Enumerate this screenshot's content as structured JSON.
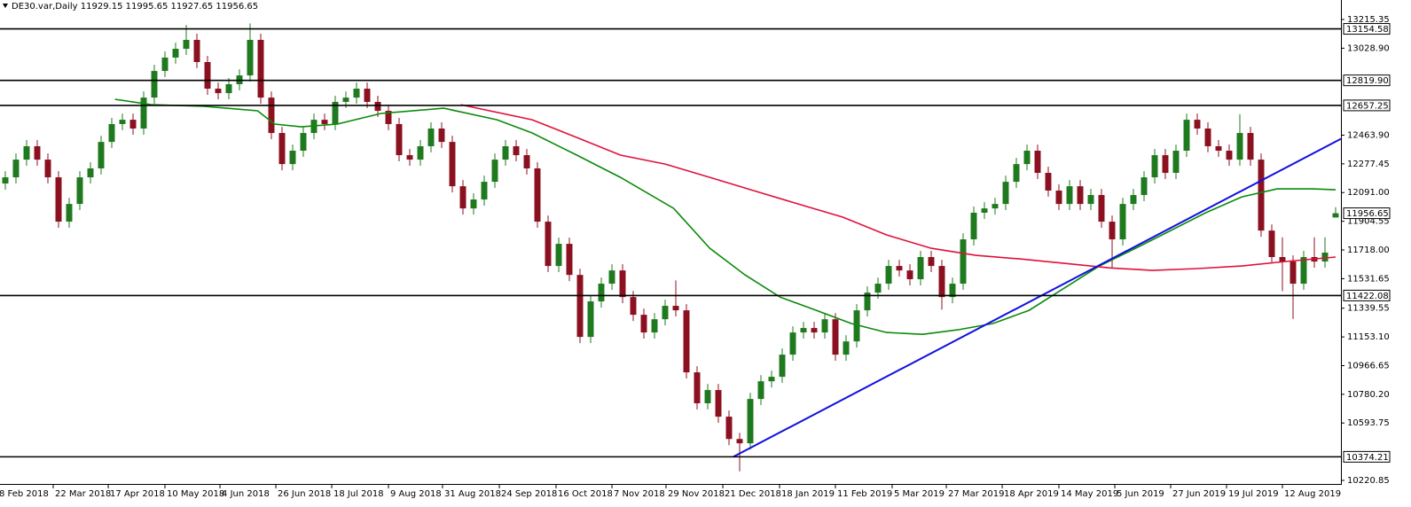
{
  "chart_data": {
    "type": "candlestick",
    "title": "DE30.var,Daily  11929.15 11995.65 11927.65 11956.65",
    "up_color": "#1f7a1f",
    "down_color": "#8b1020",
    "open": [
      12150,
      12190,
      12305,
      12392,
      12305,
      12190,
      11902,
      12017,
      12190,
      12248,
      12420,
      12536,
      12564,
      12507,
      12708,
      12881,
      12968,
      13025,
      13083,
      12939,
      12766,
      12737,
      12795,
      12852,
      13083,
      12708,
      12478,
      12276,
      12363,
      12478,
      12564,
      12536,
      12680,
      12708,
      12766,
      12680,
      12622,
      12536,
      12334,
      12305,
      12392,
      12507,
      12420,
      12132,
      11988,
      12046,
      12161,
      12305,
      12392,
      12334,
      12248,
      11902,
      11614,
      11758,
      11556,
      11153,
      11384,
      11499,
      11585,
      11412,
      11297,
      11182,
      11268,
      11355,
      11326,
      10923,
      10722,
      10808,
      10635,
      10490,
      10462,
      10750,
      10865,
      10894,
      11038,
      11182,
      11211,
      11182,
      11268,
      11038,
      11124,
      11326,
      11441,
      11499,
      11614,
      11585,
      11528,
      11672,
      11614,
      11412,
      11499,
      11787,
      11960,
      11988,
      12017,
      12161,
      12276,
      12363,
      12219,
      12104,
      12017,
      12132,
      12017,
      12075,
      11902,
      11787,
      12017,
      12075,
      12190,
      12334,
      12219,
      12363,
      12564,
      12507,
      12392,
      12363,
      12305,
      12478,
      12305,
      11844,
      11672,
      11643,
      11499,
      11672,
      11643,
      11929
    ],
    "high": [
      12230,
      12345,
      12432,
      12432,
      12345,
      12230,
      12057,
      12230,
      12288,
      12460,
      12576,
      12604,
      12604,
      12748,
      12921,
      13008,
      13065,
      13180,
      13123,
      12979,
      12806,
      12835,
      12892,
      13190,
      13123,
      12748,
      12518,
      12403,
      12518,
      12604,
      12604,
      12720,
      12748,
      12806,
      12806,
      12720,
      12662,
      12576,
      12374,
      12432,
      12547,
      12547,
      12460,
      12172,
      12086,
      12201,
      12345,
      12432,
      12432,
      12374,
      12288,
      11942,
      11798,
      11798,
      11596,
      11424,
      11539,
      11625,
      11625,
      11452,
      11337,
      11308,
      11395,
      11520,
      11366,
      10963,
      10848,
      10848,
      10675,
      10530,
      10790,
      10905,
      10934,
      11078,
      11222,
      11251,
      11251,
      11308,
      11308,
      11164,
      11366,
      11481,
      11539,
      11654,
      11654,
      11625,
      11712,
      11712,
      11654,
      11539,
      11827,
      12000,
      12028,
      12057,
      12201,
      12316,
      12403,
      12403,
      12259,
      12144,
      12172,
      12172,
      12115,
      12115,
      11942,
      12057,
      12115,
      12230,
      12374,
      12374,
      12403,
      12604,
      12604,
      12547,
      12432,
      12403,
      12600,
      12518,
      12345,
      11884,
      11800,
      11683,
      11712,
      11800,
      11800,
      11996
    ],
    "low": [
      12110,
      12150,
      12265,
      12265,
      12150,
      11862,
      11862,
      11977,
      12150,
      12208,
      12380,
      12496,
      12467,
      12467,
      12668,
      12841,
      12928,
      12985,
      12899,
      12726,
      12697,
      12697,
      12755,
      12812,
      12668,
      12438,
      12236,
      12236,
      12323,
      12438,
      12496,
      12496,
      12640,
      12668,
      12640,
      12582,
      12496,
      12294,
      12265,
      12265,
      12352,
      12380,
      12092,
      11948,
      11948,
      12006,
      12121,
      12265,
      12294,
      12208,
      11862,
      11574,
      11574,
      11516,
      11113,
      11113,
      11344,
      11459,
      11372,
      11257,
      11142,
      11142,
      11228,
      11286,
      10883,
      10682,
      10682,
      10595,
      10450,
      10280,
      10422,
      10710,
      10825,
      10854,
      10998,
      11142,
      11142,
      11142,
      10998,
      10998,
      11084,
      11286,
      11401,
      11459,
      11545,
      11488,
      11488,
      11574,
      11330,
      11372,
      11459,
      11747,
      11920,
      11948,
      11977,
      12121,
      12236,
      12179,
      12064,
      11977,
      11977,
      11977,
      11977,
      11862,
      11600,
      11747,
      11977,
      12035,
      12150,
      12179,
      12179,
      12323,
      12467,
      12352,
      12323,
      12265,
      12265,
      12265,
      11804,
      11632,
      11450,
      11270,
      11459,
      11603,
      11603,
      11928
    ],
    "close": [
      12190,
      12305,
      12392,
      12305,
      12190,
      11902,
      12017,
      12190,
      12248,
      12420,
      12536,
      12564,
      12507,
      12708,
      12881,
      12968,
      13025,
      13083,
      12939,
      12766,
      12737,
      12795,
      12852,
      13083,
      12708,
      12478,
      12276,
      12363,
      12478,
      12564,
      12536,
      12680,
      12708,
      12766,
      12680,
      12622,
      12536,
      12334,
      12305,
      12392,
      12507,
      12420,
      12132,
      11988,
      12046,
      12161,
      12305,
      12392,
      12334,
      12248,
      11902,
      11614,
      11758,
      11556,
      11153,
      11384,
      11499,
      11585,
      11412,
      11297,
      11182,
      11268,
      11355,
      11326,
      10923,
      10722,
      10808,
      10635,
      10490,
      10462,
      10750,
      10865,
      10894,
      11038,
      11182,
      11211,
      11182,
      11268,
      11038,
      11124,
      11326,
      11441,
      11499,
      11614,
      11585,
      11528,
      11672,
      11614,
      11412,
      11499,
      11787,
      11960,
      11988,
      12017,
      12161,
      12276,
      12363,
      12219,
      12104,
      12017,
      12132,
      12017,
      12075,
      11902,
      11787,
      12017,
      12075,
      12190,
      12334,
      12219,
      12363,
      12564,
      12507,
      12392,
      12363,
      12305,
      12478,
      12305,
      11844,
      11672,
      11643,
      11499,
      11672,
      11643,
      11701,
      11956.65
    ],
    "xlim": [
      -0.5,
      125.5
    ],
    "xticks": [
      {
        "value": -0.75,
        "label": "8 Feb 2018"
      },
      {
        "value": 4.5,
        "label": "22 Mar 2018"
      },
      {
        "value": 9.67,
        "label": "17 Apr 2018"
      },
      {
        "value": 15,
        "label": "10 May 2018"
      },
      {
        "value": 20.17,
        "label": "4 Jun 2018"
      },
      {
        "value": 25.42,
        "label": "26 Jun 2018"
      },
      {
        "value": 30.67,
        "label": "18 Jul 2018"
      },
      {
        "value": 36,
        "label": "9 Aug 2018"
      },
      {
        "value": 41.08,
        "label": "31 Aug 2018"
      },
      {
        "value": 46.42,
        "label": "24 Sep 2018"
      },
      {
        "value": 51.75,
        "label": "16 Oct 2018"
      },
      {
        "value": 57,
        "label": "7 Nov 2018"
      },
      {
        "value": 62.08,
        "label": "29 Nov 2018"
      },
      {
        "value": 67.42,
        "label": "21 Dec 2018"
      },
      {
        "value": 72.75,
        "label": "18 Jan 2019"
      },
      {
        "value": 78,
        "label": "11 Feb 2019"
      },
      {
        "value": 83.33,
        "label": "5 Mar 2019"
      },
      {
        "value": 88.42,
        "label": "27 Mar 2019"
      },
      {
        "value": 93.67,
        "label": "18 Apr 2019"
      },
      {
        "value": 99,
        "label": "14 May 2019"
      },
      {
        "value": 104.25,
        "label": "5 Jun 2019"
      },
      {
        "value": 109.5,
        "label": "27 Jun 2019"
      },
      {
        "value": 114.75,
        "label": "19 Jul 2019"
      },
      {
        "value": 120,
        "label": "12 Aug 2019"
      }
    ],
    "ylim": [
      10220.85,
      13215.35
    ],
    "yticks": [
      13215.35,
      {
        "value": 13028.9,
        "label": "13028.90"
      },
      {
        "value": 12463.9,
        "label": "12463.90"
      },
      12277.45,
      {
        "value": 12091,
        "label": "12091.00"
      },
      11904.55,
      {
        "value": 11718,
        "label": "11718.00"
      },
      11531.65,
      11339.55,
      {
        "value": 11153.1,
        "label": "11153.10"
      },
      10966.65,
      {
        "value": 10780.2,
        "label": "10780.20"
      },
      10593.75,
      10220.85
    ],
    "levels": [
      13154.58,
      {
        "value": 12819.9,
        "label": "12819.90"
      },
      12657.25,
      11422.08,
      10374.21
    ],
    "last_price": 11956.65,
    "lines": [
      {
        "color": "#0a8a0a",
        "x": [
          10.3,
          13.7,
          18.7,
          23.7,
          25.3,
          27.8,
          31.2,
          35.3,
          41.2,
          46.2,
          49.5,
          53.7,
          57.8,
          62.8,
          66.2,
          69.5,
          72.8,
          76.2,
          79.5,
          82.8,
          86.2,
          89.5,
          92.8,
          96.2,
          99.5,
          102.8,
          106.2,
          109.5,
          112.8,
          116.2,
          119.5,
          122.8,
          125
        ],
        "values": [
          12697,
          12662,
          12651,
          12622,
          12536,
          12518,
          12536,
          12605,
          12639,
          12564,
          12478,
          12334,
          12190,
          11988,
          11729,
          11556,
          11412,
          11326,
          11240,
          11182,
          11170,
          11199,
          11240,
          11326,
          11470,
          11614,
          11729,
          11844,
          11960,
          12063,
          12115,
          12115,
          12109
        ]
      },
      {
        "color": "#e0103a",
        "x": [
          42.8,
          49.5,
          53.7,
          57.8,
          62,
          66.2,
          70.3,
          74.5,
          78.7,
          82.8,
          87,
          91.2,
          95.3,
          99.5,
          103.7,
          107.8,
          112,
          116.2,
          120.3,
          125
        ],
        "values": [
          12662,
          12564,
          12449,
          12334,
          12276,
          12190,
          12104,
          12017,
          11931,
          11816,
          11729,
          11683,
          11660,
          11631,
          11602,
          11585,
          11597,
          11614,
          11643,
          11672
        ]
      }
    ],
    "trendline": {
      "color": "#1010e0",
      "x": [
        68.4,
        125.5
      ],
      "values": [
        10374.21,
        12440
      ]
    }
  }
}
